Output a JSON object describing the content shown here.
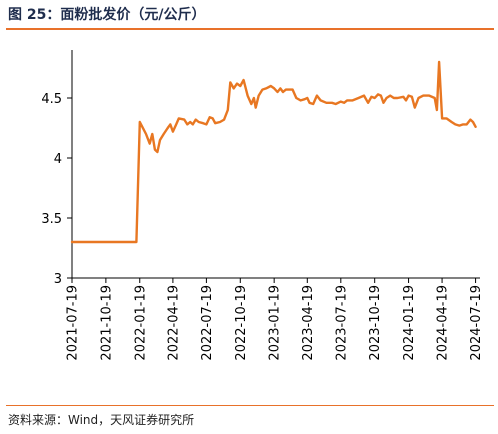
{
  "header": {
    "title": "图 25：面粉批发价（元/公斤）"
  },
  "footer": {
    "source": "资料来源：Wind，天风证券研究所"
  },
  "colors": {
    "accent": "#e8712a",
    "series": "#e87722",
    "title_text": "#1f2d4d"
  },
  "chart_data": {
    "type": "line",
    "title": "图 25：面粉批发价（元/公斤）",
    "xlabel": "",
    "ylabel": "",
    "ylim": [
      3,
      4.9
    ],
    "yticks": [
      3,
      3.5,
      4,
      4.5
    ],
    "ytick_labels": [
      "3",
      "3.5",
      "4",
      "4.5"
    ],
    "xlim": [
      "2021-07-19",
      "2024-07-31"
    ],
    "xticks": [
      "2021-07-19",
      "2021-10-19",
      "2022-01-19",
      "2022-04-19",
      "2022-07-19",
      "2022-10-19",
      "2023-01-19",
      "2023-04-19",
      "2023-07-19",
      "2023-10-19",
      "2024-01-19",
      "2024-04-19",
      "2024-07-19"
    ],
    "grid": false,
    "legend": "none",
    "series": [
      {
        "points": [
          [
            "2021-07-19",
            3.3
          ],
          [
            "2022-01-10",
            3.3
          ],
          [
            "2022-01-19",
            4.3
          ],
          [
            "2022-02-05",
            4.2
          ],
          [
            "2022-02-15",
            4.12
          ],
          [
            "2022-02-22",
            4.2
          ],
          [
            "2022-03-01",
            4.07
          ],
          [
            "2022-03-08",
            4.05
          ],
          [
            "2022-03-15",
            4.15
          ],
          [
            "2022-03-25",
            4.2
          ],
          [
            "2022-04-05",
            4.25
          ],
          [
            "2022-04-12",
            4.28
          ],
          [
            "2022-04-19",
            4.22
          ],
          [
            "2022-04-28",
            4.28
          ],
          [
            "2022-05-05",
            4.33
          ],
          [
            "2022-05-20",
            4.32
          ],
          [
            "2022-05-28",
            4.28
          ],
          [
            "2022-06-05",
            4.3
          ],
          [
            "2022-06-12",
            4.28
          ],
          [
            "2022-06-20",
            4.32
          ],
          [
            "2022-06-28",
            4.3
          ],
          [
            "2022-07-10",
            4.29
          ],
          [
            "2022-07-19",
            4.28
          ],
          [
            "2022-07-28",
            4.34
          ],
          [
            "2022-08-05",
            4.33
          ],
          [
            "2022-08-12",
            4.29
          ],
          [
            "2022-08-25",
            4.3
          ],
          [
            "2022-09-05",
            4.32
          ],
          [
            "2022-09-15",
            4.4
          ],
          [
            "2022-09-22",
            4.63
          ],
          [
            "2022-10-01",
            4.58
          ],
          [
            "2022-10-10",
            4.62
          ],
          [
            "2022-10-19",
            4.6
          ],
          [
            "2022-10-28",
            4.65
          ],
          [
            "2022-11-08",
            4.52
          ],
          [
            "2022-11-18",
            4.45
          ],
          [
            "2022-11-25",
            4.5
          ],
          [
            "2022-11-30",
            4.42
          ],
          [
            "2022-12-08",
            4.52
          ],
          [
            "2022-12-18",
            4.57
          ],
          [
            "2022-12-28",
            4.58
          ],
          [
            "2023-01-10",
            4.6
          ],
          [
            "2023-01-19",
            4.58
          ],
          [
            "2023-01-28",
            4.55
          ],
          [
            "2023-02-05",
            4.58
          ],
          [
            "2023-02-12",
            4.55
          ],
          [
            "2023-02-20",
            4.57
          ],
          [
            "2023-03-10",
            4.57
          ],
          [
            "2023-03-20",
            4.5
          ],
          [
            "2023-04-01",
            4.48
          ],
          [
            "2023-04-12",
            4.49
          ],
          [
            "2023-04-19",
            4.5
          ],
          [
            "2023-04-25",
            4.46
          ],
          [
            "2023-05-05",
            4.45
          ],
          [
            "2023-05-15",
            4.52
          ],
          [
            "2023-05-25",
            4.48
          ],
          [
            "2023-06-10",
            4.46
          ],
          [
            "2023-06-25",
            4.46
          ],
          [
            "2023-07-05",
            4.45
          ],
          [
            "2023-07-19",
            4.47
          ],
          [
            "2023-07-28",
            4.46
          ],
          [
            "2023-08-05",
            4.48
          ],
          [
            "2023-08-20",
            4.48
          ],
          [
            "2023-09-05",
            4.5
          ],
          [
            "2023-09-20",
            4.52
          ],
          [
            "2023-10-01",
            4.46
          ],
          [
            "2023-10-10",
            4.51
          ],
          [
            "2023-10-19",
            4.5
          ],
          [
            "2023-10-28",
            4.53
          ],
          [
            "2023-11-05",
            4.52
          ],
          [
            "2023-11-12",
            4.46
          ],
          [
            "2023-11-20",
            4.5
          ],
          [
            "2023-11-30",
            4.52
          ],
          [
            "2023-12-10",
            4.5
          ],
          [
            "2023-12-20",
            4.5
          ],
          [
            "2024-01-05",
            4.51
          ],
          [
            "2024-01-12",
            4.48
          ],
          [
            "2024-01-19",
            4.52
          ],
          [
            "2024-01-28",
            4.51
          ],
          [
            "2024-02-05",
            4.42
          ],
          [
            "2024-02-15",
            4.5
          ],
          [
            "2024-02-28",
            4.52
          ],
          [
            "2024-03-15",
            4.52
          ],
          [
            "2024-03-30",
            4.5
          ],
          [
            "2024-04-05",
            4.4
          ],
          [
            "2024-04-11",
            4.8
          ],
          [
            "2024-04-19",
            4.33
          ],
          [
            "2024-05-01",
            4.33
          ],
          [
            "2024-05-15",
            4.3
          ],
          [
            "2024-05-25",
            4.28
          ],
          [
            "2024-06-05",
            4.27
          ],
          [
            "2024-06-15",
            4.28
          ],
          [
            "2024-06-25",
            4.28
          ],
          [
            "2024-07-05",
            4.32
          ],
          [
            "2024-07-12",
            4.3
          ],
          [
            "2024-07-19",
            4.26
          ]
        ]
      }
    ]
  }
}
